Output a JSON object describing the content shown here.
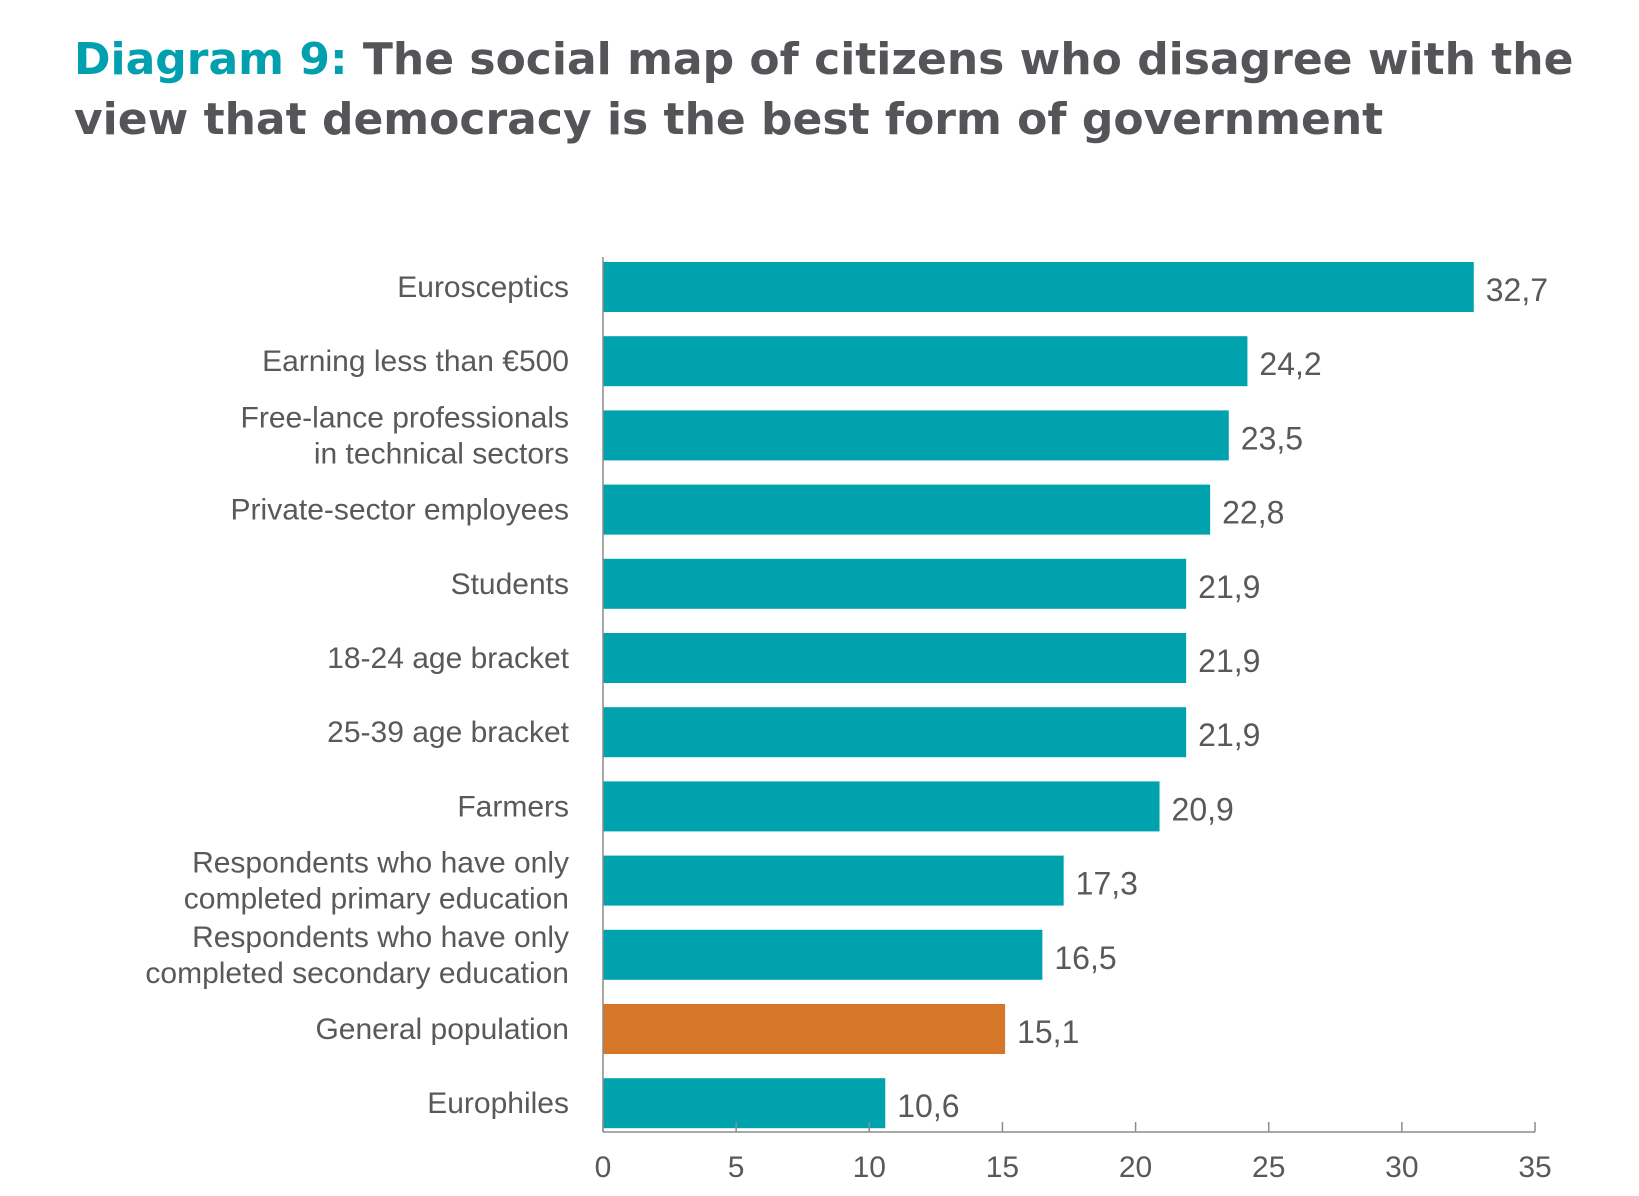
{
  "title": {
    "prefix": "Diagram 9:",
    "text": "The social map of citizens who disagree with the view that democracy is the best form of government"
  },
  "chart_data": {
    "type": "bar",
    "orientation": "horizontal",
    "categories": [
      [
        "Eurosceptics"
      ],
      [
        "Earning less than €500"
      ],
      [
        "Free-lance professionals",
        "in technical sectors"
      ],
      [
        "Private-sector employees"
      ],
      [
        "Students"
      ],
      [
        "18-24 age bracket"
      ],
      [
        "25-39 age bracket"
      ],
      [
        "Farmers"
      ],
      [
        "Respondents who have only",
        "completed primary education"
      ],
      [
        "Respondents  who have only",
        "completed secondary education"
      ],
      [
        "General population"
      ],
      [
        "Europhiles"
      ]
    ],
    "values": [
      32.7,
      24.2,
      23.5,
      22.8,
      21.9,
      21.9,
      21.9,
      20.9,
      17.3,
      16.5,
      15.1,
      10.6
    ],
    "value_labels": [
      "32,7",
      "24,2",
      "23,5",
      "22,8",
      "21,9",
      "21,9",
      "21,9",
      "20,9",
      "17,3",
      "16,5",
      "15,1",
      "10,6"
    ],
    "bar_colors": [
      "#00A3AD",
      "#00A3AD",
      "#00A3AD",
      "#00A3AD",
      "#00A3AD",
      "#00A3AD",
      "#00A3AD",
      "#00A3AD",
      "#00A3AD",
      "#00A3AD",
      "#D57628",
      "#00A3AD"
    ],
    "xlim": [
      0,
      35
    ],
    "xticks": [
      0,
      5,
      10,
      15,
      20,
      25,
      30,
      35
    ],
    "xtick_labels": [
      "0",
      "5",
      "10",
      "15",
      "20",
      "25",
      "30",
      "35"
    ],
    "xlabel": "",
    "ylabel": "",
    "grid": false,
    "legend": "none",
    "colors": {
      "bar": "#00A3AD",
      "highlight": "#D57628",
      "axis": "#8C8C8C",
      "text": "#58595B",
      "title_prefix": "#00A0AF",
      "title": "#555559"
    }
  }
}
